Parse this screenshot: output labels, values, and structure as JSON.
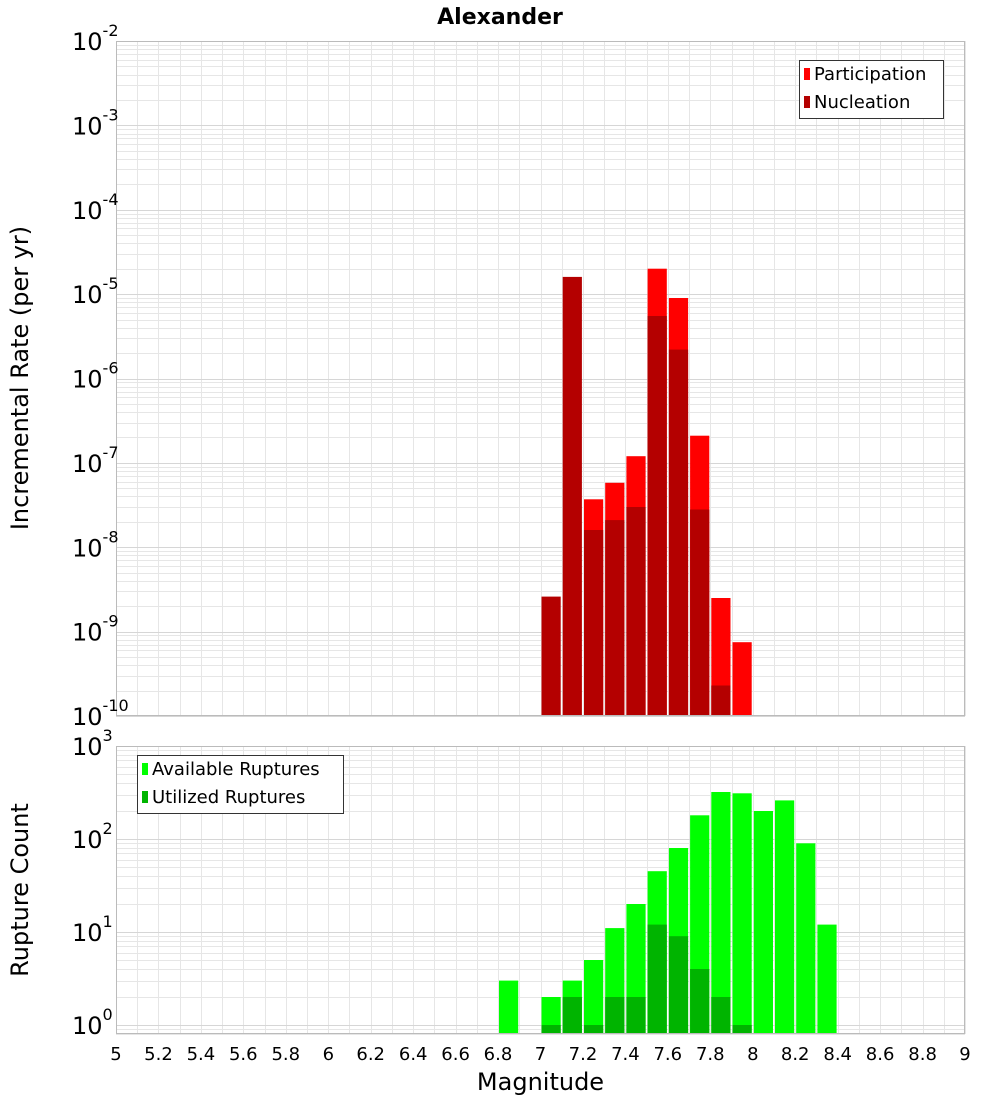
{
  "title": "Alexander",
  "colors": {
    "participation": "#ff0000",
    "nucleation": "#b40000",
    "available": "#00ff00",
    "utilized": "#00b400",
    "grid": "#e6e6e6",
    "frame": "#bbbbbb"
  },
  "chart_data": [
    {
      "type": "bar",
      "title": "Alexander",
      "xlabel": "",
      "ylabel": "Incremental Rate (per yr)",
      "yscale": "log",
      "ylim": [
        1e-10,
        0.01
      ],
      "xlim": [
        5,
        9
      ],
      "grid": true,
      "legend_position": "top-right",
      "bin_width": 0.1,
      "series": [
        {
          "name": "Participation",
          "color": "#ff0000",
          "x": [
            7.25,
            7.35,
            7.45,
            7.55,
            7.65,
            7.75,
            7.85,
            7.95
          ],
          "values": [
            3.7e-08,
            5.8e-08,
            1.2e-07,
            2e-05,
            9e-06,
            2.1e-07,
            2.5e-09,
            7.5e-10
          ]
        },
        {
          "name": "Nucleation",
          "color": "#b40000",
          "x": [
            7.05,
            7.15,
            7.25,
            7.35,
            7.45,
            7.55,
            7.65,
            7.75,
            7.85
          ],
          "values": [
            2.6e-09,
            1.6e-05,
            1.6e-08,
            2.1e-08,
            3e-08,
            5.5e-06,
            2.2e-06,
            2.8e-08,
            2.3e-10
          ]
        }
      ],
      "y_ticks": [
        {
          "base": "10",
          "exp": "-2",
          "value": 0.01
        },
        {
          "base": "10",
          "exp": "-3",
          "value": 0.001
        },
        {
          "base": "10",
          "exp": "-4",
          "value": 0.0001
        },
        {
          "base": "10",
          "exp": "-5",
          "value": 1e-05
        },
        {
          "base": "10",
          "exp": "-6",
          "value": 1e-06
        },
        {
          "base": "10",
          "exp": "-7",
          "value": 1e-07
        },
        {
          "base": "10",
          "exp": "-8",
          "value": 1e-08
        },
        {
          "base": "10",
          "exp": "-9",
          "value": 1e-09
        },
        {
          "base": "10",
          "exp": "-10",
          "value": 1e-10
        }
      ]
    },
    {
      "type": "bar",
      "title": "",
      "xlabel": "Magnitude",
      "ylabel": "Rupture Count",
      "yscale": "log",
      "ylim": [
        0.8,
        1000
      ],
      "xlim": [
        5,
        9
      ],
      "grid": true,
      "legend_position": "top-left",
      "bin_width": 0.1,
      "series": [
        {
          "name": "Available Ruptures",
          "color": "#00ff00",
          "x": [
            6.85,
            7.05,
            7.15,
            7.25,
            7.35,
            7.45,
            7.55,
            7.65,
            7.75,
            7.85,
            7.95,
            8.05,
            8.15,
            8.25,
            8.35
          ],
          "values": [
            3,
            2,
            3,
            5,
            11,
            20,
            45,
            80,
            180,
            320,
            310,
            200,
            260,
            90,
            12
          ]
        },
        {
          "name": "Utilized Ruptures",
          "color": "#00b400",
          "x": [
            7.05,
            7.15,
            7.25,
            7.35,
            7.45,
            7.55,
            7.65,
            7.75,
            7.85,
            7.95
          ],
          "values": [
            1,
            2,
            1,
            2,
            2,
            12,
            9,
            4,
            2,
            1
          ]
        }
      ],
      "y_ticks": [
        {
          "base": "10",
          "exp": "3",
          "value": 1000
        },
        {
          "base": "10",
          "exp": "2",
          "value": 100
        },
        {
          "base": "10",
          "exp": "1",
          "value": 10
        },
        {
          "base": "10",
          "exp": "0",
          "value": 1
        }
      ],
      "x_ticks": [
        "5",
        "5.2",
        "5.4",
        "5.6",
        "5.8",
        "6",
        "6.2",
        "6.4",
        "6.6",
        "6.8",
        "7",
        "7.2",
        "7.4",
        "7.6",
        "7.8",
        "8",
        "8.2",
        "8.4",
        "8.6",
        "8.8",
        "9"
      ]
    }
  ]
}
